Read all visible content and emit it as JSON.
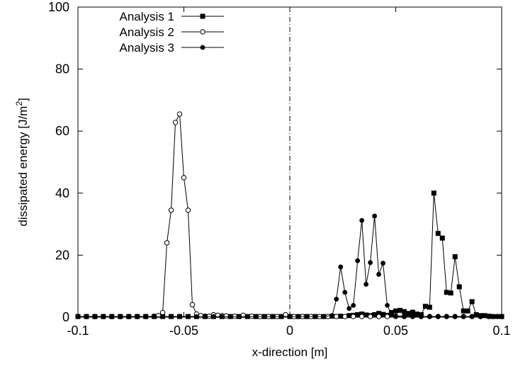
{
  "chart_data": {
    "type": "line",
    "xlabel": "x-direction [m]",
    "ylabel": "dissipated energy [J/m",
    "ylabel_sup": "2",
    "ylabel_close": "]",
    "xlim": [
      -0.1,
      0.1
    ],
    "ylim": [
      0,
      100
    ],
    "x_ticks": [
      -0.1,
      -0.05,
      0,
      0.05,
      0.1
    ],
    "x_tick_labels": [
      "-0.1",
      "-0.05",
      "0",
      "0.05",
      "0.1"
    ],
    "y_ticks": [
      0,
      20,
      40,
      60,
      80,
      100
    ],
    "y_tick_labels": [
      "0",
      "20",
      "40",
      "60",
      "80",
      "100"
    ],
    "grid": false,
    "legend_position": "top-left",
    "vertical_reference_line_x": 0,
    "series": [
      {
        "name": "Analysis 1",
        "marker": "filled-square",
        "x": [
          -0.1,
          -0.096,
          -0.092,
          -0.088,
          -0.084,
          -0.08,
          -0.076,
          -0.072,
          -0.068,
          -0.064,
          -0.06,
          -0.056,
          -0.052,
          -0.048,
          -0.044,
          -0.04,
          -0.036,
          -0.032,
          -0.028,
          -0.024,
          -0.02,
          -0.016,
          -0.012,
          -0.008,
          -0.004,
          0.0,
          0.004,
          0.008,
          0.012,
          0.016,
          0.02,
          0.024,
          0.028,
          0.03,
          0.032,
          0.034,
          0.036,
          0.038,
          0.04,
          0.042,
          0.044,
          0.046,
          0.048,
          0.05,
          0.052,
          0.054,
          0.056,
          0.058,
          0.06,
          0.062,
          0.064,
          0.066,
          0.068,
          0.07,
          0.072,
          0.074,
          0.076,
          0.078,
          0.08,
          0.082,
          0.084,
          0.086,
          0.088,
          0.09,
          0.092,
          0.094,
          0.096,
          0.1
        ],
        "y": [
          0.2,
          0.2,
          0.2,
          0.2,
          0.2,
          0.2,
          0.2,
          0.2,
          0.2,
          0.2,
          0.2,
          0.2,
          0.2,
          0.2,
          0.2,
          0.2,
          0.2,
          0.2,
          0.2,
          0.2,
          0.2,
          0.2,
          0.2,
          0.2,
          0.2,
          0.2,
          0.2,
          0.2,
          0.2,
          0.2,
          0.3,
          0.3,
          0.5,
          0.6,
          0.8,
          1.0,
          0.7,
          0.5,
          0.8,
          1.2,
          0.9,
          0.6,
          1.5,
          2.0,
          2.2,
          1.8,
          1.2,
          1.6,
          1.0,
          0.8,
          3.5,
          3.2,
          40.0,
          27.0,
          25.5,
          8.0,
          7.8,
          19.5,
          9.8,
          2.0,
          2.0,
          5.0,
          0.8,
          0.5,
          0.5,
          0.3,
          0.2,
          0.2
        ]
      },
      {
        "name": "Analysis 2",
        "marker": "open-circle",
        "x": [
          -0.1,
          -0.096,
          -0.092,
          -0.088,
          -0.084,
          -0.08,
          -0.076,
          -0.072,
          -0.068,
          -0.064,
          -0.062,
          -0.06,
          -0.058,
          -0.056,
          -0.054,
          -0.052,
          -0.05,
          -0.048,
          -0.046,
          -0.044,
          -0.042,
          -0.04,
          -0.038,
          -0.036,
          -0.034,
          -0.032,
          -0.03,
          -0.026,
          -0.022,
          -0.018,
          -0.014,
          -0.01,
          -0.006,
          -0.002,
          0.002,
          0.006,
          0.01,
          0.014,
          0.018,
          0.022,
          0.026,
          0.03,
          0.034,
          0.038,
          0.042,
          0.046,
          0.05,
          0.054,
          0.058,
          0.062,
          0.066,
          0.07,
          0.074,
          0.078,
          0.082,
          0.086,
          0.09,
          0.094,
          0.098,
          0.1
        ],
        "y": [
          0.2,
          0.2,
          0.2,
          0.2,
          0.2,
          0.2,
          0.2,
          0.2,
          0.2,
          0.3,
          0.5,
          1.5,
          24.0,
          34.5,
          62.8,
          65.5,
          45.0,
          34.5,
          4.0,
          1.0,
          0.5,
          0.3,
          0.3,
          0.8,
          0.6,
          0.5,
          0.4,
          0.3,
          0.6,
          0.3,
          0.2,
          0.2,
          0.2,
          0.8,
          0.2,
          0.2,
          0.2,
          0.2,
          0.2,
          0.2,
          0.2,
          0.2,
          0.2,
          0.2,
          0.2,
          0.2,
          0.2,
          0.2,
          0.2,
          0.2,
          0.2,
          0.2,
          0.2,
          0.2,
          0.2,
          0.2,
          0.2,
          0.2,
          0.2,
          0.2
        ]
      },
      {
        "name": "Analysis 3",
        "marker": "filled-circle",
        "x": [
          -0.1,
          -0.096,
          -0.092,
          -0.088,
          -0.084,
          -0.08,
          -0.076,
          -0.072,
          -0.068,
          -0.064,
          -0.06,
          -0.056,
          -0.052,
          -0.048,
          -0.044,
          -0.04,
          -0.036,
          -0.032,
          -0.028,
          -0.024,
          -0.02,
          -0.016,
          -0.012,
          -0.008,
          -0.004,
          0.0,
          0.004,
          0.008,
          0.012,
          0.016,
          0.02,
          0.022,
          0.024,
          0.026,
          0.028,
          0.03,
          0.032,
          0.034,
          0.036,
          0.038,
          0.04,
          0.042,
          0.044,
          0.046,
          0.048,
          0.05,
          0.054,
          0.058,
          0.062,
          0.066,
          0.07,
          0.074,
          0.078,
          0.082,
          0.086,
          0.09,
          0.094,
          0.098,
          0.1
        ],
        "y": [
          0.2,
          0.2,
          0.2,
          0.2,
          0.2,
          0.2,
          0.2,
          0.2,
          0.2,
          0.2,
          0.2,
          0.2,
          0.2,
          0.2,
          0.2,
          0.2,
          0.2,
          0.2,
          0.2,
          0.2,
          0.2,
          0.2,
          0.2,
          0.2,
          0.2,
          0.2,
          0.2,
          0.2,
          0.2,
          0.2,
          0.5,
          5.8,
          16.2,
          8.0,
          2.8,
          3.8,
          18.2,
          31.2,
          10.6,
          17.6,
          32.6,
          13.8,
          17.4,
          3.8,
          0.8,
          0.4,
          0.3,
          0.2,
          0.2,
          0.2,
          0.2,
          0.2,
          0.2,
          0.2,
          0.2,
          0.2,
          0.2,
          0.2,
          0.2
        ]
      }
    ]
  }
}
